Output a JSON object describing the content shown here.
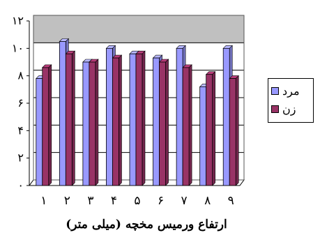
{
  "chart_data": {
    "type": "bar",
    "categories": [
      "۱",
      "۲",
      "۳",
      "۴",
      "۵",
      "۶",
      "۷",
      "۸",
      "۹"
    ],
    "series": [
      {
        "name": "مرد",
        "color": "#9999ff",
        "values": [
          7.8,
          10.5,
          9.0,
          10.0,
          9.6,
          9.3,
          10.0,
          7.2,
          10.0
        ]
      },
      {
        "name": "زن",
        "color": "#993366",
        "values": [
          8.6,
          9.6,
          9.0,
          9.3,
          9.6,
          9.0,
          8.6,
          8.1,
          7.8
        ]
      }
    ],
    "y_ticks": [
      "۰",
      "۲",
      "۴",
      "۶",
      "۸",
      "۱۰",
      "۱۲"
    ],
    "ylim": [
      0,
      12
    ],
    "xlabel": "ارتفاع ورمیس مخچه (میلی متر)",
    "ylabel": "",
    "plot_background": "#c0c0c0",
    "grid": true,
    "legend_position": "right"
  }
}
